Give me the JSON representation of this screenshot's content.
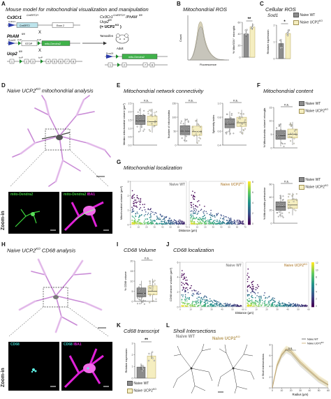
{
  "colors": {
    "wt": "#8c8c8c",
    "ko": "#f5eec0",
    "ko_stroke": "#b8a860",
    "mito": "#28a028",
    "iba1": "#e020d8",
    "cd68": "#34c8c0",
    "morph": "#c98ad6"
  },
  "panel_a": {
    "label": "A",
    "title": "Mouse model for mitochondrial visualization and manipulation",
    "cx3": "Cx3Cr1",
    "cx3_sup": "CreERT2/+",
    "cx3_promoter": "Cx3Cr1",
    "exon1": "CreERT2",
    "exon2": "Exon 2",
    "x1": "X",
    "x2": "X",
    "pham": "PhAM",
    "pham_sup": "fl/fl",
    "rosa": "Rosa26",
    "loxp1": "loxP",
    "loxp2": "loxP",
    "stop": "STOP",
    "mito_dendra": "mito-Dendra2",
    "ucp2": "Ucp2",
    "ucp2_sup": "fl/fl",
    "loxp3": "loxP",
    "loxp4": "loxP",
    "exons": [
      "1",
      "2",
      "3",
      "4",
      "5",
      "6",
      "7",
      "8"
    ],
    "tamoxifen": "Tamoxifen",
    "adult": "Adult",
    "result_line1": "Cx3Cr1",
    "result_sup1": "CreERT2/+",
    "result_mid": "/PhAM",
    "result_sup2": "fl/fl",
    "result_line2": "Ucp2",
    "result_sup3": "fl/fl",
    "result_line3": "(= UCP2",
    "result_sup4": "KO",
    "result_end": ")",
    "rosa2": "Rosa26",
    "mito_dendra2": "mito-Dendra2",
    "exons_ko": [
      "1",
      "2",
      "7",
      "8"
    ]
  },
  "legend": {
    "wt": "Naive WT",
    "ko": "Naive UCP2",
    "ko_sup": "KO"
  },
  "panel_b": {
    "label": "B",
    "title": "Mitochondrial ROS",
    "xlabel": "Fluorescence",
    "ylabel": "Count",
    "sig": "**",
    "bar_ylabel": "% MitoSOX⁺ microglia",
    "yticks": [
      "0",
      "20",
      "40",
      "60"
    ]
  },
  "panel_c": {
    "label": "C",
    "title": "Cellular ROS",
    "gene": "Sod1",
    "ylabel": "Relative expression",
    "sig": "*",
    "yticks": [
      "0",
      "1",
      "2"
    ]
  },
  "panel_d": {
    "label": "D",
    "title": "Naive UCP2",
    "title_sup": "KO",
    "title_end": " mitochondrial analysis",
    "img1": "mito-Dendra2",
    "img2a": "mito-Dendra2",
    "img2b": "IBA1",
    "zoom": "Zoom-in"
  },
  "panel_e": {
    "label": "E",
    "title": "Mitochondrial network connectivity",
    "plots": [
      {
        "ylabel": "Median mitochondrial volume (μm³)",
        "sig": "n.s.",
        "yticks": [
          "0.0",
          "0.5",
          "1.0",
          "1.5",
          "2.0",
          "2.5"
        ]
      },
      {
        "ylabel": "Number of mitochondria",
        "sig": "n.s.",
        "yticks": [
          "0",
          "50",
          "100",
          "150"
        ]
      },
      {
        "ylabel": "Sphericity index",
        "sig": "n.s.",
        "yticks": [
          "0.4",
          "0.6",
          "0.8",
          "1.0"
        ]
      }
    ]
  },
  "panel_f": {
    "label": "F",
    "title": "Mitochondrial content",
    "ylabel": "% Mitochondria volume/ microglia",
    "sig": "n.s.",
    "yticks": [
      "0",
      "5",
      "10",
      "15"
    ]
  },
  "panel_g": {
    "label": "G",
    "title": "Mitochondrial localization",
    "ylabel": "Mitochondrial volume (μm³)",
    "xlabel": "Distance (μm)",
    "wt_label": "Naive WT",
    "ko_label": "Naive UCP2",
    "ko_sup": "KO",
    "yticks": [
      "0",
      "1",
      "2",
      "3"
    ],
    "xticks": [
      "0",
      "10",
      "20",
      "30",
      "40",
      "50",
      "60",
      "70"
    ],
    "colorbar_ticks": [
      "8",
      "6",
      "4",
      "2",
      "0"
    ],
    "f2_ylabel": "% Mitochondria perinuclear",
    "f2_sig": "n.s.",
    "f2_yticks": [
      "0",
      "20",
      "40",
      "60"
    ]
  },
  "panel_h": {
    "label": "H",
    "title": "Naive UCP2",
    "title_sup": "KO",
    "title_end": " CD68 analysis",
    "img1": "CD68",
    "img2a": "CD68",
    "img2b": "IBA1",
    "zoom": "Zoom-in"
  },
  "panel_i": {
    "label": "I",
    "title": "CD68 Volume",
    "ylabel": "% CD68 volume",
    "sig": "n.s.",
    "yticks": [
      "0",
      "5",
      "10",
      "15",
      "20"
    ]
  },
  "panel_j": {
    "label": "J",
    "title": "CD68 localization",
    "ylabel": "CD68 vesicle volume (μm³)",
    "xlabel": "Distance (μm)",
    "wt_label": "Naive WT",
    "ko_label": "Naive UCP2",
    "ko_sup": "KO",
    "yticks": [
      "0",
      "2",
      "4",
      "6"
    ],
    "xticks": [
      "0",
      "10",
      "20",
      "30",
      "40",
      "50",
      "60"
    ],
    "colorbar_ticks": [
      "12",
      "10",
      "8",
      "6",
      "4",
      "2",
      "0"
    ]
  },
  "panel_k": {
    "label": "K",
    "title": "Cd68 transcript",
    "ylabel": "Relative expression",
    "sig": "**",
    "yticks": [
      "0",
      "1",
      "2",
      "3"
    ]
  },
  "panel_l": {
    "label": "L",
    "title": "Sholl Intersections",
    "wt_label": "Naive WT",
    "ko_label": "Naive UCP2",
    "ko_sup": "KO",
    "ylabel": "# Sholl intersections",
    "xlabel": "Radius (μm)",
    "sig": "n.s.",
    "yticks": [
      "0",
      "2",
      "4",
      "6",
      "8"
    ],
    "xticks": [
      "0",
      "10",
      "20",
      "30",
      "40",
      "50",
      "60"
    ],
    "legend_wt": "Naive WT",
    "legend_ko": "Naive UCP2",
    "legend_ko_sup": "KO"
  },
  "chart_data": [
    {
      "type": "bar",
      "panel": "B",
      "categories": [
        "Naive WT",
        "Naive UCP2KO"
      ],
      "values": [
        40,
        52
      ],
      "ylim": [
        0,
        60
      ]
    },
    {
      "type": "bar",
      "panel": "C",
      "categories": [
        "Naive WT",
        "Naive UCP2KO"
      ],
      "values": [
        0.9,
        1.5
      ],
      "ylim": [
        0,
        2
      ]
    },
    {
      "type": "box",
      "panel": "E1",
      "categories": [
        "Naive WT",
        "Naive UCP2KO"
      ],
      "medians": [
        1.45,
        1.4
      ],
      "ylim": [
        0,
        2.5
      ]
    },
    {
      "type": "box",
      "panel": "E2",
      "categories": [
        "Naive WT",
        "Naive UCP2KO"
      ],
      "medians": [
        50,
        48
      ],
      "ylim": [
        0,
        150
      ]
    },
    {
      "type": "box",
      "panel": "E3",
      "categories": [
        "Naive WT",
        "Naive UCP2KO"
      ],
      "medians": [
        0.7,
        0.72
      ],
      "ylim": [
        0.4,
        1.0
      ]
    },
    {
      "type": "box",
      "panel": "F",
      "categories": [
        "Naive WT",
        "Naive UCP2KO"
      ],
      "medians": [
        4.5,
        5
      ],
      "ylim": [
        0,
        15
      ]
    },
    {
      "type": "box",
      "panel": "G-right",
      "categories": [
        "Naive WT",
        "Naive UCP2KO"
      ],
      "medians": [
        25,
        28
      ],
      "ylim": [
        0,
        60
      ]
    },
    {
      "type": "box",
      "panel": "I",
      "categories": [
        "Naive WT",
        "Naive UCP2KO"
      ],
      "medians": [
        4,
        5
      ],
      "ylim": [
        0,
        20
      ]
    },
    {
      "type": "bar",
      "panel": "K",
      "categories": [
        "Naive WT",
        "Naive UCP2KO"
      ],
      "values": [
        0.95,
        1.9
      ],
      "ylim": [
        0,
        3
      ]
    },
    {
      "type": "line",
      "panel": "L",
      "x": [
        0,
        5,
        10,
        15,
        20,
        25,
        30,
        40,
        50,
        60
      ],
      "series": [
        {
          "name": "Naive WT",
          "values": [
            0,
            4,
            6,
            7,
            6.5,
            5.5,
            4.5,
            3,
            1.5,
            0.5
          ]
        },
        {
          "name": "Naive UCP2KO",
          "values": [
            0,
            4.2,
            6.2,
            7.2,
            6.8,
            5.8,
            4.8,
            3.2,
            1.7,
            0.6
          ]
        }
      ],
      "ylim": [
        0,
        8
      ],
      "xlim": [
        0,
        60
      ]
    }
  ]
}
